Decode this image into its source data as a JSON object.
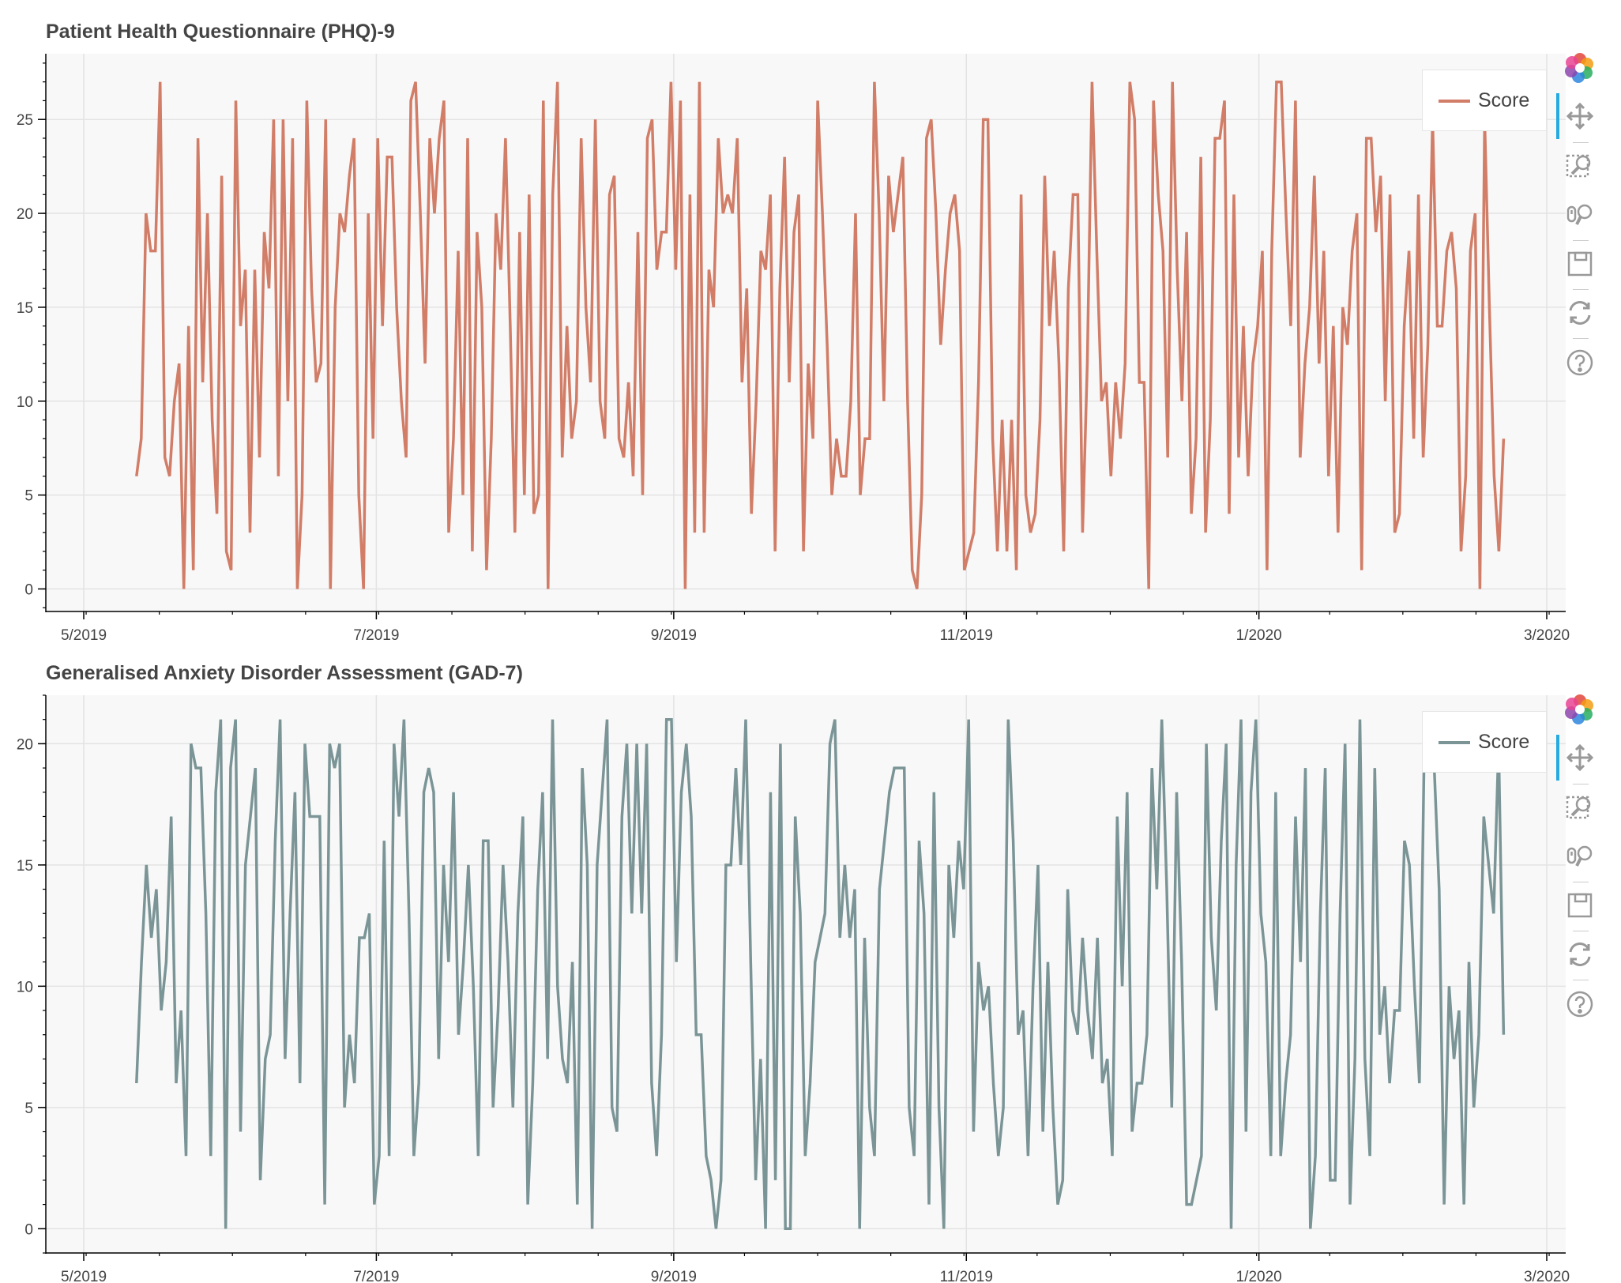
{
  "charts": {
    "phq": {
      "title": "Patient Health Questionnaire (PHQ)-9",
      "legend": "Score",
      "color": "#d17d67"
    },
    "gad": {
      "title": "Generalised Anxiety Disorder Assessment (GAD-7)",
      "legend": "Score",
      "color": "#7b9597"
    }
  },
  "toolbar": {
    "tools": [
      "bokeh-logo-icon",
      "pan-icon",
      "box-zoom-icon",
      "wheel-zoom-icon",
      "save-icon",
      "reset-icon",
      "help-icon"
    ]
  },
  "chart_data": [
    {
      "type": "line",
      "title": "Patient Health Questionnaire (PHQ)-9",
      "legend": [
        "Score"
      ],
      "x_ticks": [
        "5/2019",
        "7/2019",
        "9/2019",
        "11/2019",
        "1/2020",
        "3/2020"
      ],
      "y_ticks": [
        0,
        5,
        10,
        15,
        20,
        25
      ],
      "ylim": [
        -1.2,
        28.5
      ],
      "grid": true,
      "legend_position": "top-right",
      "x_start": "2019-05-12",
      "x_end": "2020-02-21",
      "series": [
        {
          "name": "Score",
          "values": [
            6,
            8,
            20,
            18,
            18,
            27,
            7,
            6,
            10,
            12,
            0,
            14,
            1,
            24,
            11,
            20,
            9,
            4,
            22,
            2,
            1,
            26,
            14,
            17,
            3,
            17,
            7,
            19,
            16,
            25,
            6,
            25,
            10,
            24,
            0,
            5,
            26,
            16,
            11,
            12,
            25,
            0,
            15,
            20,
            19,
            22,
            24,
            5,
            0,
            20,
            8,
            24,
            14,
            23,
            23,
            15,
            10,
            7,
            26,
            27,
            20,
            12,
            24,
            20,
            24,
            26,
            3,
            8,
            18,
            5,
            24,
            2,
            19,
            15,
            1,
            8,
            20,
            17,
            24,
            14,
            3,
            19,
            5,
            21,
            4,
            5,
            26,
            0,
            21,
            27,
            7,
            14,
            8,
            10,
            24,
            15,
            11,
            25,
            10,
            8,
            21,
            22,
            8,
            7,
            11,
            6,
            19,
            5,
            24,
            25,
            17,
            19,
            19,
            27,
            17,
            26,
            0,
            21,
            3,
            27,
            3,
            17,
            15,
            24,
            20,
            21,
            20,
            24,
            11,
            16,
            4,
            10,
            18,
            17,
            21,
            2,
            16,
            23,
            11,
            19,
            21,
            2,
            12,
            8,
            26,
            20,
            13,
            5,
            8,
            6,
            6,
            10,
            20,
            5,
            8,
            8,
            27,
            20,
            10,
            22,
            19,
            21,
            23,
            10,
            1,
            0,
            5,
            24,
            25,
            20,
            13,
            17,
            20,
            21,
            18,
            1,
            2,
            3,
            11,
            25,
            25,
            8,
            2,
            9,
            2,
            9,
            1,
            21,
            5,
            3,
            4,
            9,
            22,
            14,
            18,
            12,
            2,
            16,
            21,
            21,
            3,
            12,
            27,
            18,
            10,
            11,
            6,
            11,
            8,
            12,
            27,
            25,
            11,
            11,
            0,
            26,
            21,
            18,
            7,
            27,
            17,
            10,
            19,
            4,
            8,
            23,
            3,
            9,
            24,
            24,
            26,
            4,
            21,
            7,
            14,
            6,
            12,
            14,
            18,
            1,
            18,
            27,
            27,
            20,
            14,
            26,
            7,
            12,
            15,
            22,
            12,
            18,
            6,
            14,
            3,
            15,
            13,
            18,
            20,
            1,
            24,
            24,
            19,
            22,
            10,
            21,
            3,
            4,
            14,
            18,
            8,
            21,
            7,
            13,
            25,
            14,
            14,
            18,
            19,
            16,
            2,
            6,
            18,
            20,
            0,
            25,
            15,
            6,
            2,
            8
          ]
        }
      ]
    },
    {
      "type": "line",
      "title": "Generalised Anxiety Disorder Assessment (GAD-7)",
      "legend": [
        "Score"
      ],
      "x_ticks": [
        "5/2019",
        "7/2019",
        "9/2019",
        "11/2019",
        "1/2020",
        "3/2020"
      ],
      "y_ticks": [
        0,
        5,
        10,
        15,
        20
      ],
      "ylim": [
        -1.0,
        22.0
      ],
      "grid": true,
      "legend_position": "top-right",
      "x_start": "2019-05-12",
      "x_end": "2020-02-21",
      "series": [
        {
          "name": "Score",
          "values": [
            6,
            11,
            15,
            12,
            14,
            9,
            11,
            17,
            6,
            9,
            3,
            20,
            19,
            19,
            13,
            3,
            18,
            21,
            0,
            19,
            21,
            4,
            15,
            17,
            19,
            2,
            7,
            8,
            16,
            21,
            7,
            13,
            18,
            6,
            20,
            17,
            17,
            17,
            1,
            20,
            19,
            20,
            5,
            8,
            6,
            12,
            12,
            13,
            1,
            3,
            16,
            3,
            20,
            17,
            21,
            13,
            3,
            6,
            18,
            19,
            18,
            7,
            15,
            11,
            18,
            8,
            11,
            15,
            10,
            3,
            16,
            16,
            5,
            9,
            15,
            11,
            5,
            13,
            17,
            1,
            6,
            14,
            18,
            7,
            21,
            10,
            7,
            6,
            11,
            1,
            19,
            15,
            0,
            15,
            18,
            21,
            5,
            4,
            17,
            20,
            13,
            20,
            13,
            20,
            6,
            3,
            8,
            21,
            21,
            11,
            18,
            20,
            17,
            8,
            8,
            3,
            2,
            0,
            2,
            15,
            15,
            19,
            15,
            21,
            11,
            2,
            7,
            0,
            18,
            2,
            20,
            0,
            0,
            17,
            13,
            3,
            6,
            11,
            12,
            13,
            20,
            21,
            12,
            15,
            12,
            14,
            0,
            12,
            5,
            3,
            14,
            16,
            18,
            19,
            19,
            19,
            5,
            3,
            16,
            13,
            1,
            18,
            5,
            0,
            15,
            12,
            16,
            14,
            21,
            4,
            11,
            9,
            10,
            6,
            3,
            5,
            21,
            16,
            8,
            9,
            3,
            10,
            15,
            4,
            11,
            5,
            1,
            2,
            14,
            9,
            8,
            12,
            9,
            7,
            12,
            6,
            7,
            3,
            17,
            10,
            18,
            4,
            6,
            6,
            8,
            19,
            14,
            21,
            14,
            5,
            18,
            11,
            1,
            1,
            2,
            3,
            20,
            12,
            9,
            16,
            20,
            0,
            15,
            21,
            4,
            18,
            21,
            13,
            11,
            3,
            18,
            3,
            6,
            8,
            17,
            11,
            19,
            0,
            3,
            13,
            19,
            2,
            2,
            13,
            20,
            1,
            7,
            21,
            7,
            3,
            19,
            8,
            10,
            6,
            9,
            9,
            16,
            15,
            10,
            6,
            20,
            20,
            19,
            14,
            1,
            10,
            7,
            9,
            1,
            11,
            5,
            8,
            17,
            15,
            13,
            20,
            8
          ]
        }
      ]
    }
  ]
}
